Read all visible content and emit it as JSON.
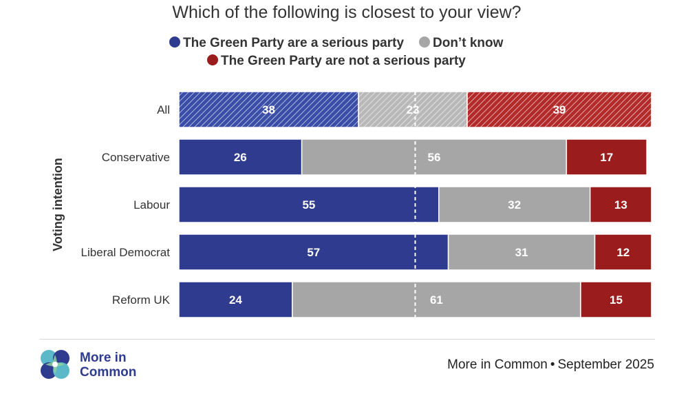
{
  "chart_data": {
    "type": "bar",
    "orientation": "horizontal",
    "stacked": true,
    "title": "Which of the following is closest to your view?",
    "ylabel": "Voting intention",
    "xlim": [
      0,
      100
    ],
    "categories": [
      "All",
      "Conservative",
      "Labour",
      "Liberal Democrat",
      "Reform UK"
    ],
    "series": [
      {
        "name": "The Green Party are a serious party",
        "color": "#2e3b8f",
        "values": [
          38,
          26,
          55,
          57,
          24
        ]
      },
      {
        "name": "Don’t know",
        "color": "#a6a6a6",
        "values": [
          23,
          56,
          32,
          31,
          61
        ]
      },
      {
        "name": "The Green Party are not a serious party",
        "color": "#9b1c1c",
        "values": [
          39,
          17,
          13,
          12,
          15
        ]
      }
    ],
    "hatched_categories": [
      "All"
    ],
    "reference_line_at": 50,
    "legend_position": "top"
  },
  "footer": {
    "logo_line1": "More in",
    "logo_line2": "Common",
    "source": "More in Common",
    "date": "September 2025",
    "separator": "•"
  }
}
